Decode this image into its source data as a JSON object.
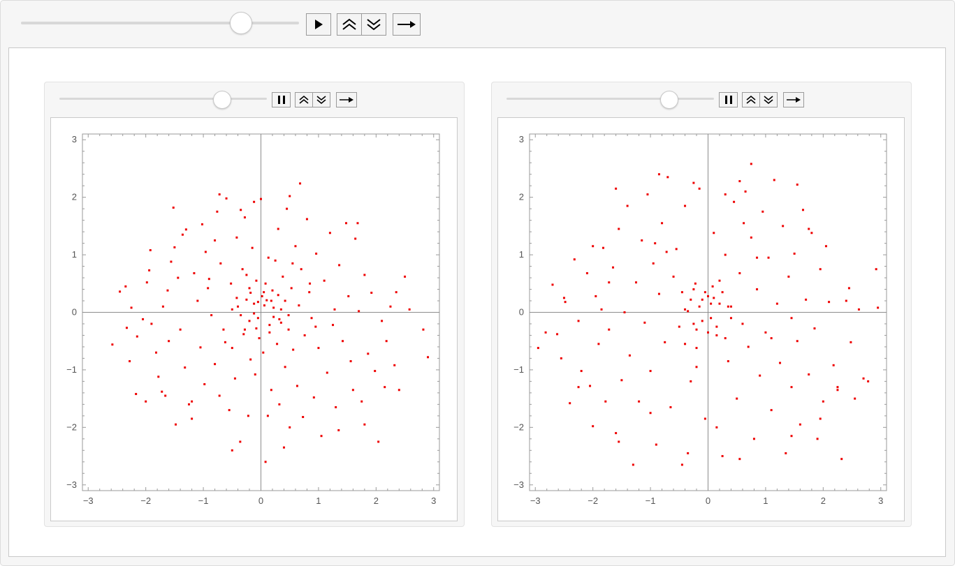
{
  "main_controls": {
    "play_icon": "play-icon",
    "faster_icon": "double-chevron-up-icon",
    "slower_icon": "double-chevron-down-icon",
    "direction_icon": "right-arrow-icon",
    "slider_position": 0.79
  },
  "panels": [
    {
      "controls": {
        "pause_icon": "pause-icon",
        "slider_position": 0.78
      }
    },
    {
      "controls": {
        "pause_icon": "pause-icon",
        "slider_position": 0.78
      }
    }
  ],
  "accent_color": "#ee0000",
  "chart_data": [
    {
      "type": "scatter",
      "title": "",
      "xlabel": "",
      "ylabel": "",
      "xlim": [
        -3.1,
        3.1
      ],
      "ylim": [
        -3.1,
        3.1
      ],
      "x_ticks": [
        "−3",
        "−2",
        "−1",
        "0",
        "1",
        "2",
        "3"
      ],
      "y_ticks": [
        "3",
        "2",
        "1",
        "0",
        "−1",
        "−2",
        "−3"
      ],
      "color": "#ee0000",
      "points": [
        [
          -2.58,
          -0.56
        ],
        [
          -2.45,
          0.36
        ],
        [
          -2.35,
          0.45
        ],
        [
          -2.33,
          -0.27
        ],
        [
          -2.28,
          -0.85
        ],
        [
          -2.17,
          -1.42
        ],
        [
          -2.15,
          -0.42
        ],
        [
          -2.05,
          -0.12
        ],
        [
          -1.98,
          0.52
        ],
        [
          -1.94,
          0.73
        ],
        [
          -1.9,
          -0.2
        ],
        [
          -1.82,
          -0.7
        ],
        [
          -1.78,
          -1.12
        ],
        [
          -1.72,
          -1.38
        ],
        [
          -1.66,
          -1.45
        ],
        [
          -1.6,
          -0.5
        ],
        [
          -1.56,
          0.88
        ],
        [
          -1.5,
          1.13
        ],
        [
          -1.44,
          0.6
        ],
        [
          -1.4,
          -0.3
        ],
        [
          -1.36,
          1.35
        ],
        [
          -1.32,
          -0.96
        ],
        [
          -1.3,
          1.44
        ],
        [
          -1.25,
          -1.6
        ],
        [
          -1.2,
          -1.85
        ],
        [
          -1.16,
          0.68
        ],
        [
          -1.1,
          0.2
        ],
        [
          -1.05,
          -0.61
        ],
        [
          -1.02,
          1.53
        ],
        [
          -0.98,
          -1.25
        ],
        [
          -0.96,
          1.05
        ],
        [
          -0.9,
          0.58
        ],
        [
          -0.86,
          -0.05
        ],
        [
          -0.8,
          -0.9
        ],
        [
          -0.76,
          1.75
        ],
        [
          -0.72,
          -1.45
        ],
        [
          -0.7,
          0.85
        ],
        [
          -0.65,
          -0.3
        ],
        [
          -0.6,
          1.98
        ],
        [
          -0.55,
          -1.7
        ],
        [
          -0.52,
          0.5
        ],
        [
          -0.5,
          -0.62
        ],
        [
          -0.45,
          -1.15
        ],
        [
          -0.42,
          1.3
        ],
        [
          -0.4,
          0.1
        ],
        [
          -0.36,
          -2.25
        ],
        [
          -0.32,
          0.75
        ],
        [
          -0.3,
          -0.38
        ],
        [
          -0.28,
          1.65
        ],
        [
          -0.25,
          0.22
        ],
        [
          -0.22,
          -1.8
        ],
        [
          -0.2,
          -0.15
        ],
        [
          -0.18,
          0.34
        ],
        [
          -0.15,
          1.12
        ],
        [
          -0.12,
          -0.02
        ],
        [
          -0.1,
          -1.08
        ],
        [
          -0.08,
          0.55
        ],
        [
          -0.05,
          0.18
        ],
        [
          -0.03,
          -0.45
        ],
        [
          0,
          1.97
        ],
        [
          0.02,
          0.28
        ],
        [
          0.04,
          -0.7
        ],
        [
          0.06,
          0.12
        ],
        [
          0.08,
          -2.6
        ],
        [
          0.1,
          0.21
        ],
        [
          0.13,
          0.95
        ],
        [
          0.15,
          -0.22
        ],
        [
          0.18,
          -1.35
        ],
        [
          0.2,
          0.38
        ],
        [
          0.22,
          -0.08
        ],
        [
          0.25,
          0.9
        ],
        [
          0.28,
          -0.55
        ],
        [
          0.3,
          1.45
        ],
        [
          0.32,
          -1.6
        ],
        [
          0.35,
          0.05
        ],
        [
          0.38,
          0.62
        ],
        [
          0.42,
          -0.95
        ],
        [
          0.45,
          1.8
        ],
        [
          0.48,
          -0.3
        ],
        [
          0.5,
          -2.0
        ],
        [
          0.53,
          0.42
        ],
        [
          0.56,
          -0.65
        ],
        [
          0.6,
          1.15
        ],
        [
          0.63,
          -1.28
        ],
        [
          0.66,
          0.12
        ],
        [
          0.7,
          0.75
        ],
        [
          0.73,
          -1.82
        ],
        [
          0.76,
          -0.4
        ],
        [
          0.8,
          1.62
        ],
        [
          0.84,
          0.35
        ],
        [
          0.88,
          -0.1
        ],
        [
          0.92,
          -1.48
        ],
        [
          0.96,
          1.02
        ],
        [
          1.0,
          -0.62
        ],
        [
          1.05,
          -2.15
        ],
        [
          1.1,
          0.55
        ],
        [
          1.15,
          -1.05
        ],
        [
          1.2,
          1.38
        ],
        [
          1.25,
          -0.22
        ],
        [
          1.3,
          -1.65
        ],
        [
          1.36,
          0.82
        ],
        [
          1.42,
          -0.5
        ],
        [
          1.48,
          1.55
        ],
        [
          1.52,
          0.28
        ],
        [
          1.56,
          -0.85
        ],
        [
          1.6,
          -1.35
        ],
        [
          1.64,
          1.28
        ],
        [
          1.7,
          0.02
        ],
        [
          1.75,
          -1.55
        ],
        [
          1.8,
          0.65
        ],
        [
          1.86,
          -0.72
        ],
        [
          1.92,
          0.34
        ],
        [
          1.98,
          -1.02
        ],
        [
          2.04,
          -2.25
        ],
        [
          2.1,
          -0.15
        ],
        [
          2.18,
          -0.5
        ],
        [
          2.25,
          0.1
        ],
        [
          2.32,
          -0.92
        ],
        [
          2.4,
          -1.35
        ],
        [
          2.5,
          0.62
        ],
        [
          2.58,
          0.05
        ],
        [
          2.82,
          -0.3
        ],
        [
          2.9,
          -0.78
        ],
        [
          0.68,
          2.24
        ],
        [
          0.5,
          2.02
        ],
        [
          -0.12,
          1.92
        ],
        [
          -0.35,
          1.78
        ],
        [
          -1.52,
          1.82
        ],
        [
          -0.72,
          2.05
        ],
        [
          0.85,
          0.5
        ],
        [
          -0.92,
          0.42
        ],
        [
          -0.62,
          -0.52
        ],
        [
          0.32,
          -0.12
        ],
        [
          0.55,
          0.85
        ],
        [
          -1.2,
          -1.55
        ],
        [
          -1.7,
          0.1
        ],
        [
          1.28,
          0.05
        ],
        [
          -0.18,
          -0.82
        ],
        [
          0.12,
          -1.8
        ],
        [
          0.95,
          -0.25
        ],
        [
          -0.8,
          1.25
        ],
        [
          -2.0,
          -1.55
        ],
        [
          -1.48,
          -1.95
        ],
        [
          -0.5,
          -2.4
        ],
        [
          0.4,
          -2.35
        ],
        [
          1.35,
          -2.05
        ],
        [
          1.8,
          -1.95
        ],
        [
          2.15,
          -1.3
        ],
        [
          -1.92,
          1.08
        ],
        [
          -1.62,
          0.38
        ],
        [
          -2.25,
          0.08
        ],
        [
          1.68,
          1.55
        ],
        [
          2.35,
          0.35
        ],
        [
          -0.25,
          0.65
        ],
        [
          0.18,
          0.2
        ],
        [
          0.05,
          0.35
        ],
        [
          -0.12,
          0.15
        ],
        [
          0.22,
          0.08
        ],
        [
          -0.05,
          -0.1
        ],
        [
          0.3,
          0.3
        ],
        [
          -0.35,
          -0.05
        ],
        [
          0.15,
          -0.35
        ],
        [
          -0.2,
          0.42
        ],
        [
          0.42,
          0.2
        ],
        [
          -0.42,
          0.25
        ],
        [
          0.08,
          0.5
        ],
        [
          -0.08,
          -0.28
        ],
        [
          0.35,
          -0.18
        ],
        [
          -0.28,
          -0.3
        ],
        [
          0.48,
          -0.05
        ],
        [
          -0.5,
          0.05
        ]
      ]
    },
    {
      "type": "scatter",
      "title": "",
      "xlabel": "",
      "ylabel": "",
      "xlim": [
        -3.1,
        3.1
      ],
      "ylim": [
        -3.1,
        3.1
      ],
      "x_ticks": [
        "−3",
        "−2",
        "−1",
        "0",
        "1",
        "2",
        "3"
      ],
      "y_ticks": [
        "3",
        "2",
        "1",
        "0",
        "−1",
        "−2",
        "−3"
      ],
      "color": "#ee0000",
      "points": [
        [
          -2.95,
          -0.62
        ],
        [
          -2.82,
          -0.35
        ],
        [
          -2.7,
          0.48
        ],
        [
          -2.62,
          -0.38
        ],
        [
          -2.55,
          -0.8
        ],
        [
          -2.48,
          0.18
        ],
        [
          -2.4,
          -1.58
        ],
        [
          -2.32,
          0.92
        ],
        [
          -2.25,
          -0.15
        ],
        [
          -2.2,
          -1.02
        ],
        [
          -2.1,
          0.68
        ],
        [
          -2.05,
          -1.28
        ],
        [
          -2.0,
          -1.98
        ],
        [
          -1.95,
          0.28
        ],
        [
          -1.9,
          -0.55
        ],
        [
          -1.82,
          1.12
        ],
        [
          -1.78,
          -1.55
        ],
        [
          -1.72,
          -0.3
        ],
        [
          -1.65,
          0.78
        ],
        [
          -1.6,
          -2.1
        ],
        [
          -1.55,
          1.45
        ],
        [
          -1.5,
          -1.18
        ],
        [
          -1.45,
          0.0
        ],
        [
          -1.4,
          1.85
        ],
        [
          -1.36,
          -0.75
        ],
        [
          -1.3,
          -2.65
        ],
        [
          -1.25,
          0.52
        ],
        [
          -1.2,
          -1.55
        ],
        [
          -1.15,
          1.25
        ],
        [
          -1.1,
          -0.18
        ],
        [
          -1.05,
          2.05
        ],
        [
          -1.0,
          -1.02
        ],
        [
          -0.95,
          0.85
        ],
        [
          -0.9,
          -2.3
        ],
        [
          -0.85,
          0.32
        ],
        [
          -0.8,
          1.55
        ],
        [
          -0.75,
          -0.52
        ],
        [
          -0.7,
          2.35
        ],
        [
          -0.65,
          -1.65
        ],
        [
          -0.6,
          0.62
        ],
        [
          -0.55,
          1.1
        ],
        [
          -0.5,
          -0.25
        ],
        [
          -0.45,
          -2.65
        ],
        [
          -0.4,
          1.85
        ],
        [
          -0.35,
          0.02
        ],
        [
          -0.3,
          -1.2
        ],
        [
          -0.25,
          0.4
        ],
        [
          -0.2,
          -0.62
        ],
        [
          -0.15,
          2.15
        ],
        [
          -0.1,
          0.22
        ],
        [
          -0.05,
          -1.85
        ],
        [
          0.0,
          0.28
        ],
        [
          0.05,
          -0.1
        ],
        [
          0.1,
          1.38
        ],
        [
          0.15,
          -0.4
        ],
        [
          0.2,
          0.55
        ],
        [
          0.25,
          -2.5
        ],
        [
          0.3,
          1.0
        ],
        [
          0.35,
          -0.85
        ],
        [
          0.4,
          0.1
        ],
        [
          0.45,
          1.92
        ],
        [
          0.5,
          -1.5
        ],
        [
          0.55,
          0.68
        ],
        [
          0.6,
          -0.2
        ],
        [
          0.65,
          2.1
        ],
        [
          0.7,
          -0.6
        ],
        [
          0.75,
          1.3
        ],
        [
          0.8,
          -2.2
        ],
        [
          0.85,
          0.4
        ],
        [
          0.9,
          -1.1
        ],
        [
          0.95,
          1.75
        ],
        [
          1.0,
          -0.35
        ],
        [
          1.05,
          0.95
        ],
        [
          1.1,
          -1.7
        ],
        [
          1.15,
          2.3
        ],
        [
          1.2,
          0.15
        ],
        [
          1.25,
          -0.88
        ],
        [
          1.3,
          1.5
        ],
        [
          1.35,
          -2.45
        ],
        [
          1.4,
          0.62
        ],
        [
          1.45,
          -1.3
        ],
        [
          1.5,
          1.02
        ],
        [
          1.55,
          -0.5
        ],
        [
          1.6,
          -1.95
        ],
        [
          1.65,
          1.78
        ],
        [
          1.7,
          0.22
        ],
        [
          1.75,
          -1.08
        ],
        [
          1.8,
          1.38
        ],
        [
          1.85,
          -0.28
        ],
        [
          1.9,
          -2.2
        ],
        [
          1.95,
          0.75
        ],
        [
          2.0,
          -1.55
        ],
        [
          2.05,
          1.15
        ],
        [
          2.1,
          0.18
        ],
        [
          2.18,
          -0.92
        ],
        [
          2.25,
          -1.35
        ],
        [
          2.32,
          -2.55
        ],
        [
          2.4,
          0.2
        ],
        [
          2.48,
          -0.52
        ],
        [
          2.55,
          -1.5
        ],
        [
          2.62,
          0.05
        ],
        [
          2.7,
          -1.15
        ],
        [
          2.78,
          -1.2
        ],
        [
          2.92,
          0.75
        ],
        [
          2.95,
          0.08
        ],
        [
          0.75,
          2.58
        ],
        [
          0.55,
          2.28
        ],
        [
          -0.25,
          2.25
        ],
        [
          -0.85,
          2.4
        ],
        [
          -1.6,
          2.15
        ],
        [
          0.3,
          2.05
        ],
        [
          1.55,
          2.22
        ],
        [
          -0.72,
          1.05
        ],
        [
          0.85,
          0.95
        ],
        [
          -0.4,
          -0.55
        ],
        [
          0.3,
          -0.45
        ],
        [
          0.62,
          1.55
        ],
        [
          -1.0,
          -1.75
        ],
        [
          -1.85,
          0.05
        ],
        [
          1.45,
          -0.1
        ],
        [
          -0.2,
          -0.95
        ],
        [
          0.15,
          -2.0
        ],
        [
          1.1,
          -0.45
        ],
        [
          -0.92,
          1.2
        ],
        [
          -2.25,
          -1.3
        ],
        [
          -1.55,
          -2.25
        ],
        [
          -0.35,
          -2.45
        ],
        [
          0.55,
          -2.55
        ],
        [
          1.45,
          -2.15
        ],
        [
          1.95,
          -1.85
        ],
        [
          2.25,
          -1.3
        ],
        [
          -2.0,
          1.15
        ],
        [
          -1.72,
          0.52
        ],
        [
          -2.5,
          0.25
        ],
        [
          1.75,
          1.45
        ],
        [
          2.45,
          0.42
        ],
        [
          -0.22,
          0.5
        ],
        [
          0.1,
          0.25
        ],
        [
          -0.05,
          0.35
        ],
        [
          0.2,
          0.15
        ],
        [
          -0.15,
          0.1
        ],
        [
          0.25,
          0.35
        ],
        [
          -0.3,
          0.22
        ],
        [
          0.05,
          0.15
        ],
        [
          -0.1,
          -0.15
        ],
        [
          0.35,
          0.1
        ],
        [
          -0.4,
          0.05
        ],
        [
          0.15,
          -0.25
        ],
        [
          -0.25,
          -0.2
        ],
        [
          0.4,
          -0.1
        ],
        [
          0.08,
          0.45
        ],
        [
          -0.45,
          0.35
        ],
        [
          0.0,
          -0.35
        ],
        [
          -0.2,
          -0.3
        ]
      ]
    }
  ]
}
